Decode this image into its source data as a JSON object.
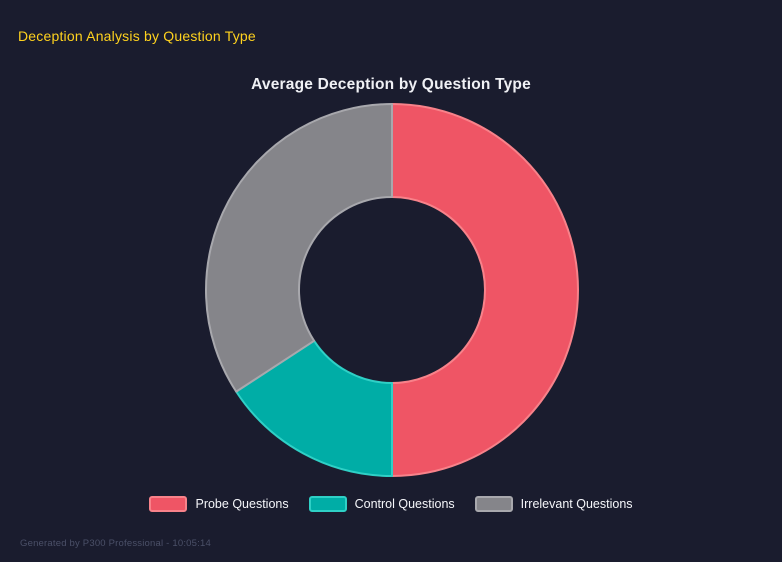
{
  "header": {
    "title": "Deception Analysis by Question Type"
  },
  "footer": {
    "text": "Generated by P300 Professional - 10:05:14",
    "generator": "P300 Professional",
    "timestamp": "10:05:14"
  },
  "colors": {
    "background": "#1A1C2E",
    "header_accent": "#FFD21E",
    "chart_title": "#F0F1F5",
    "legend_text": "#F5F6FA",
    "footer_text": "#4B5068"
  },
  "chart_data": {
    "type": "pie",
    "subtype": "donut",
    "title": "Average Deception by Question Type",
    "categories": [
      "Probe Questions",
      "Control Questions",
      "Irrelevant Questions"
    ],
    "values_pct": [
      50.0,
      15.8,
      34.2
    ],
    "colors": [
      "#EF5565",
      "#00ADA6",
      "#85858A"
    ],
    "border_colors": [
      "#F8828A",
      "#2FD0C6",
      "#A8A8AD"
    ],
    "start_angle_deg": 0,
    "direction": "clockwise",
    "inner_radius_ratio": 0.5,
    "legend_position": "bottom",
    "grid": false
  }
}
